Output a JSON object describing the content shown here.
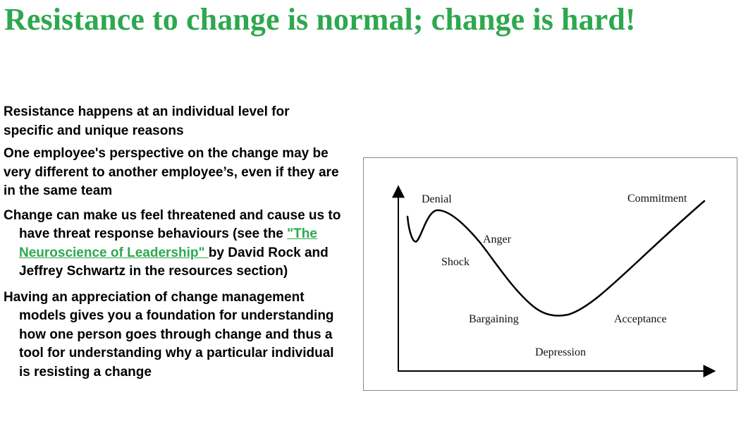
{
  "slide": {
    "title": "Resistance to change is normal; change is hard!",
    "title_color": "#2ea84f",
    "link_color": "#2ea84f"
  },
  "bullets": {
    "p1": "Resistance happens at an individual level for specific and unique reasons",
    "p2": "One employee's  perspective on the change may be very different to another employee’s, even if they are in  the same team",
    "p3_before": "Change can make us feel threatened and cause us to have threat response behaviours (see the ",
    "p3_link": "\"The Neuroscience of Leadership\" ",
    "p3_after": "by David Rock and Jeffrey Schwartz in the resources section)",
    "p4": "Having an appreciation of change management models gives you a foundation for understanding how one person goes through change and thus a tool for  understanding why a particular individual is resisting a change"
  },
  "curve": {
    "labels": {
      "denial": "Denial",
      "commitment": "Commitment",
      "anger": "Anger",
      "shock": "Shock",
      "bargaining": "Bargaining",
      "acceptance": "Acceptance",
      "depression": "Depression"
    }
  }
}
